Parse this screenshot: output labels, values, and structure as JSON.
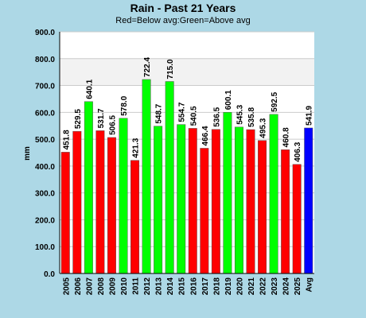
{
  "chart_data": {
    "type": "bar",
    "title": "Rain - Past 21 Years",
    "subtitle": "Red=Below avg:Green=Above avg",
    "xlabel": "",
    "ylabel": "mm",
    "ylim": [
      0,
      900
    ],
    "yticks": [
      "0.0",
      "100.0",
      "200.0",
      "300.0",
      "400.0",
      "500.0",
      "600.0",
      "700.0",
      "800.0",
      "900.0"
    ],
    "categories": [
      "2005",
      "2006",
      "2007",
      "2008",
      "2009",
      "2010",
      "2011",
      "2012",
      "2013",
      "2014",
      "2015",
      "2016",
      "2017",
      "2018",
      "2019",
      "2020",
      "2021",
      "2022",
      "2023",
      "2024",
      "2025",
      "Avg"
    ],
    "values": [
      451.8,
      529.5,
      640.1,
      531.7,
      506.5,
      578.0,
      421.3,
      722.4,
      548.7,
      715.0,
      554.7,
      540.5,
      466.4,
      536.5,
      600.1,
      545.3,
      535.8,
      495.3,
      592.5,
      460.8,
      406.3,
      541.9
    ],
    "labels": [
      "451.8",
      "529.5",
      "640.1",
      "531.7",
      "506.5",
      "578.0",
      "421.3",
      "722.4",
      "548.7",
      "715.0",
      "554.7",
      "540.5",
      "466.4",
      "536.5",
      "600.1",
      "545.3",
      "535.8",
      "495.3",
      "592.5",
      "460.8",
      "406.3",
      "541.9"
    ],
    "bar_kinds": [
      "below",
      "below",
      "above",
      "below",
      "below",
      "above",
      "below",
      "above",
      "above",
      "above",
      "above",
      "below",
      "below",
      "below",
      "above",
      "above",
      "below",
      "below",
      "above",
      "below",
      "below",
      "avg"
    ],
    "colors": {
      "below": "#ff0000",
      "above": "#00ff00",
      "avg": "#0000ff",
      "plot_bg": "#ffffff",
      "band_bg": "#f2f2f2",
      "grid": "#cccccc",
      "page_bg": "#add8e6"
    },
    "grid": true
  }
}
